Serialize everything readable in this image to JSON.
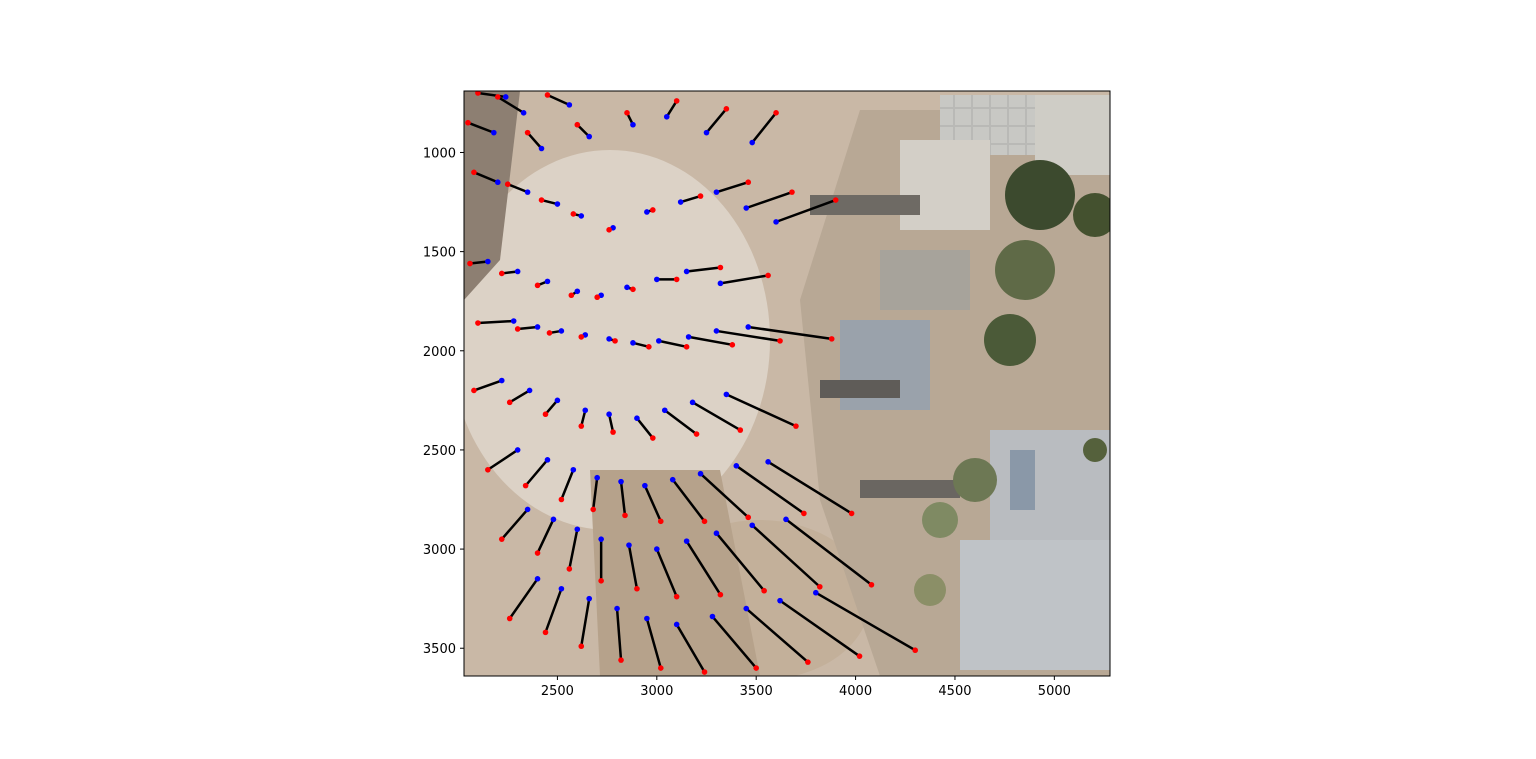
{
  "chart_data": {
    "type": "scatter",
    "title": "",
    "xlabel": "",
    "ylabel": "",
    "xlim": [
      2030,
      5280
    ],
    "ylim": [
      3640,
      690
    ],
    "y_inverted": true,
    "background": "aerial-photograph",
    "grid": false,
    "legend": "none",
    "x_ticks": [
      2500,
      3000,
      3500,
      4000,
      4500,
      5000
    ],
    "y_ticks": [
      1000,
      1500,
      2000,
      2500,
      3000,
      3500
    ],
    "x_tick_labels": [
      "2500",
      "3000",
      "3500",
      "4000",
      "4500",
      "5000"
    ],
    "y_tick_labels": [
      "1000",
      "1500",
      "2000",
      "2500",
      "3000",
      "3500"
    ],
    "flow_center": [
      2780,
      1950
    ],
    "segment_color": "#000000",
    "series": [
      {
        "role": "start-points",
        "color": "#0000ff",
        "x": [
          2240,
          2330,
          2560,
          2180,
          2420,
          2660,
          2880,
          3050,
          3250,
          3480,
          2200,
          2350,
          2500,
          2620,
          2780,
          2950,
          3120,
          3300,
          3450,
          3600,
          2150,
          2300,
          2450,
          2600,
          2720,
          2850,
          3000,
          3150,
          3320,
          2280,
          2400,
          2520,
          2640,
          2760,
          2880,
          3010,
          3160,
          3300,
          3460,
          2220,
          2360,
          2500,
          2640,
          2760,
          2900,
          3040,
          3180,
          3350,
          2300,
          2450,
          2580,
          2700,
          2820,
          2940,
          3080,
          3220,
          3400,
          3560,
          2350,
          2480,
          2600,
          2720,
          2860,
          3000,
          3150,
          3300,
          3480,
          3650,
          2400,
          2520,
          2660,
          2800,
          2950,
          3100,
          3280,
          3450,
          3620,
          3800
        ],
        "y": [
          720,
          800,
          760,
          900,
          980,
          920,
          860,
          820,
          900,
          950,
          1150,
          1200,
          1260,
          1320,
          1380,
          1300,
          1250,
          1200,
          1280,
          1350,
          1550,
          1600,
          1650,
          1700,
          1720,
          1680,
          1640,
          1600,
          1660,
          1850,
          1880,
          1900,
          1920,
          1940,
          1960,
          1950,
          1930,
          1900,
          1880,
          2150,
          2200,
          2250,
          2300,
          2320,
          2340,
          2300,
          2260,
          2220,
          2500,
          2550,
          2600,
          2640,
          2660,
          2680,
          2650,
          2620,
          2580,
          2560,
          2800,
          2850,
          2900,
          2950,
          2980,
          3000,
          2960,
          2920,
          2880,
          2850,
          3150,
          3200,
          3250,
          3300,
          3350,
          3380,
          3340,
          3300,
          3260,
          3220
        ]
      },
      {
        "role": "end-points",
        "color": "#ff0000",
        "x": [
          2100,
          2200,
          2450,
          2050,
          2350,
          2600,
          2850,
          3100,
          3350,
          3600,
          2080,
          2250,
          2420,
          2580,
          2760,
          2980,
          3220,
          3460,
          3680,
          3900,
          2060,
          2220,
          2400,
          2570,
          2700,
          2880,
          3100,
          3320,
          3560,
          2100,
          2300,
          2460,
          2620,
          2790,
          2960,
          3150,
          3380,
          3620,
          3880,
          2080,
          2260,
          2440,
          2620,
          2780,
          2980,
          3200,
          3420,
          3700,
          2150,
          2340,
          2520,
          2680,
          2840,
          3020,
          3240,
          3460,
          3740,
          3980,
          2220,
          2400,
          2560,
          2720,
          2900,
          3100,
          3320,
          3540,
          3820,
          4080,
          2260,
          2440,
          2620,
          2820,
          3020,
          3240,
          3500,
          3760,
          4020,
          4300
        ],
        "y": [
          700,
          720,
          710,
          850,
          900,
          860,
          800,
          740,
          780,
          800,
          1100,
          1160,
          1240,
          1310,
          1390,
          1290,
          1220,
          1150,
          1200,
          1240,
          1560,
          1610,
          1670,
          1720,
          1730,
          1690,
          1640,
          1580,
          1620,
          1860,
          1890,
          1910,
          1930,
          1950,
          1980,
          1980,
          1970,
          1950,
          1940,
          2200,
          2260,
          2320,
          2380,
          2410,
          2440,
          2420,
          2400,
          2380,
          2600,
          2680,
          2750,
          2800,
          2830,
          2860,
          2860,
          2840,
          2820,
          2820,
          2950,
          3020,
          3100,
          3160,
          3200,
          3240,
          3230,
          3210,
          3190,
          3180,
          3350,
          3420,
          3490,
          3560,
          3600,
          3620,
          3600,
          3570,
          3540,
          3510
        ]
      }
    ]
  }
}
